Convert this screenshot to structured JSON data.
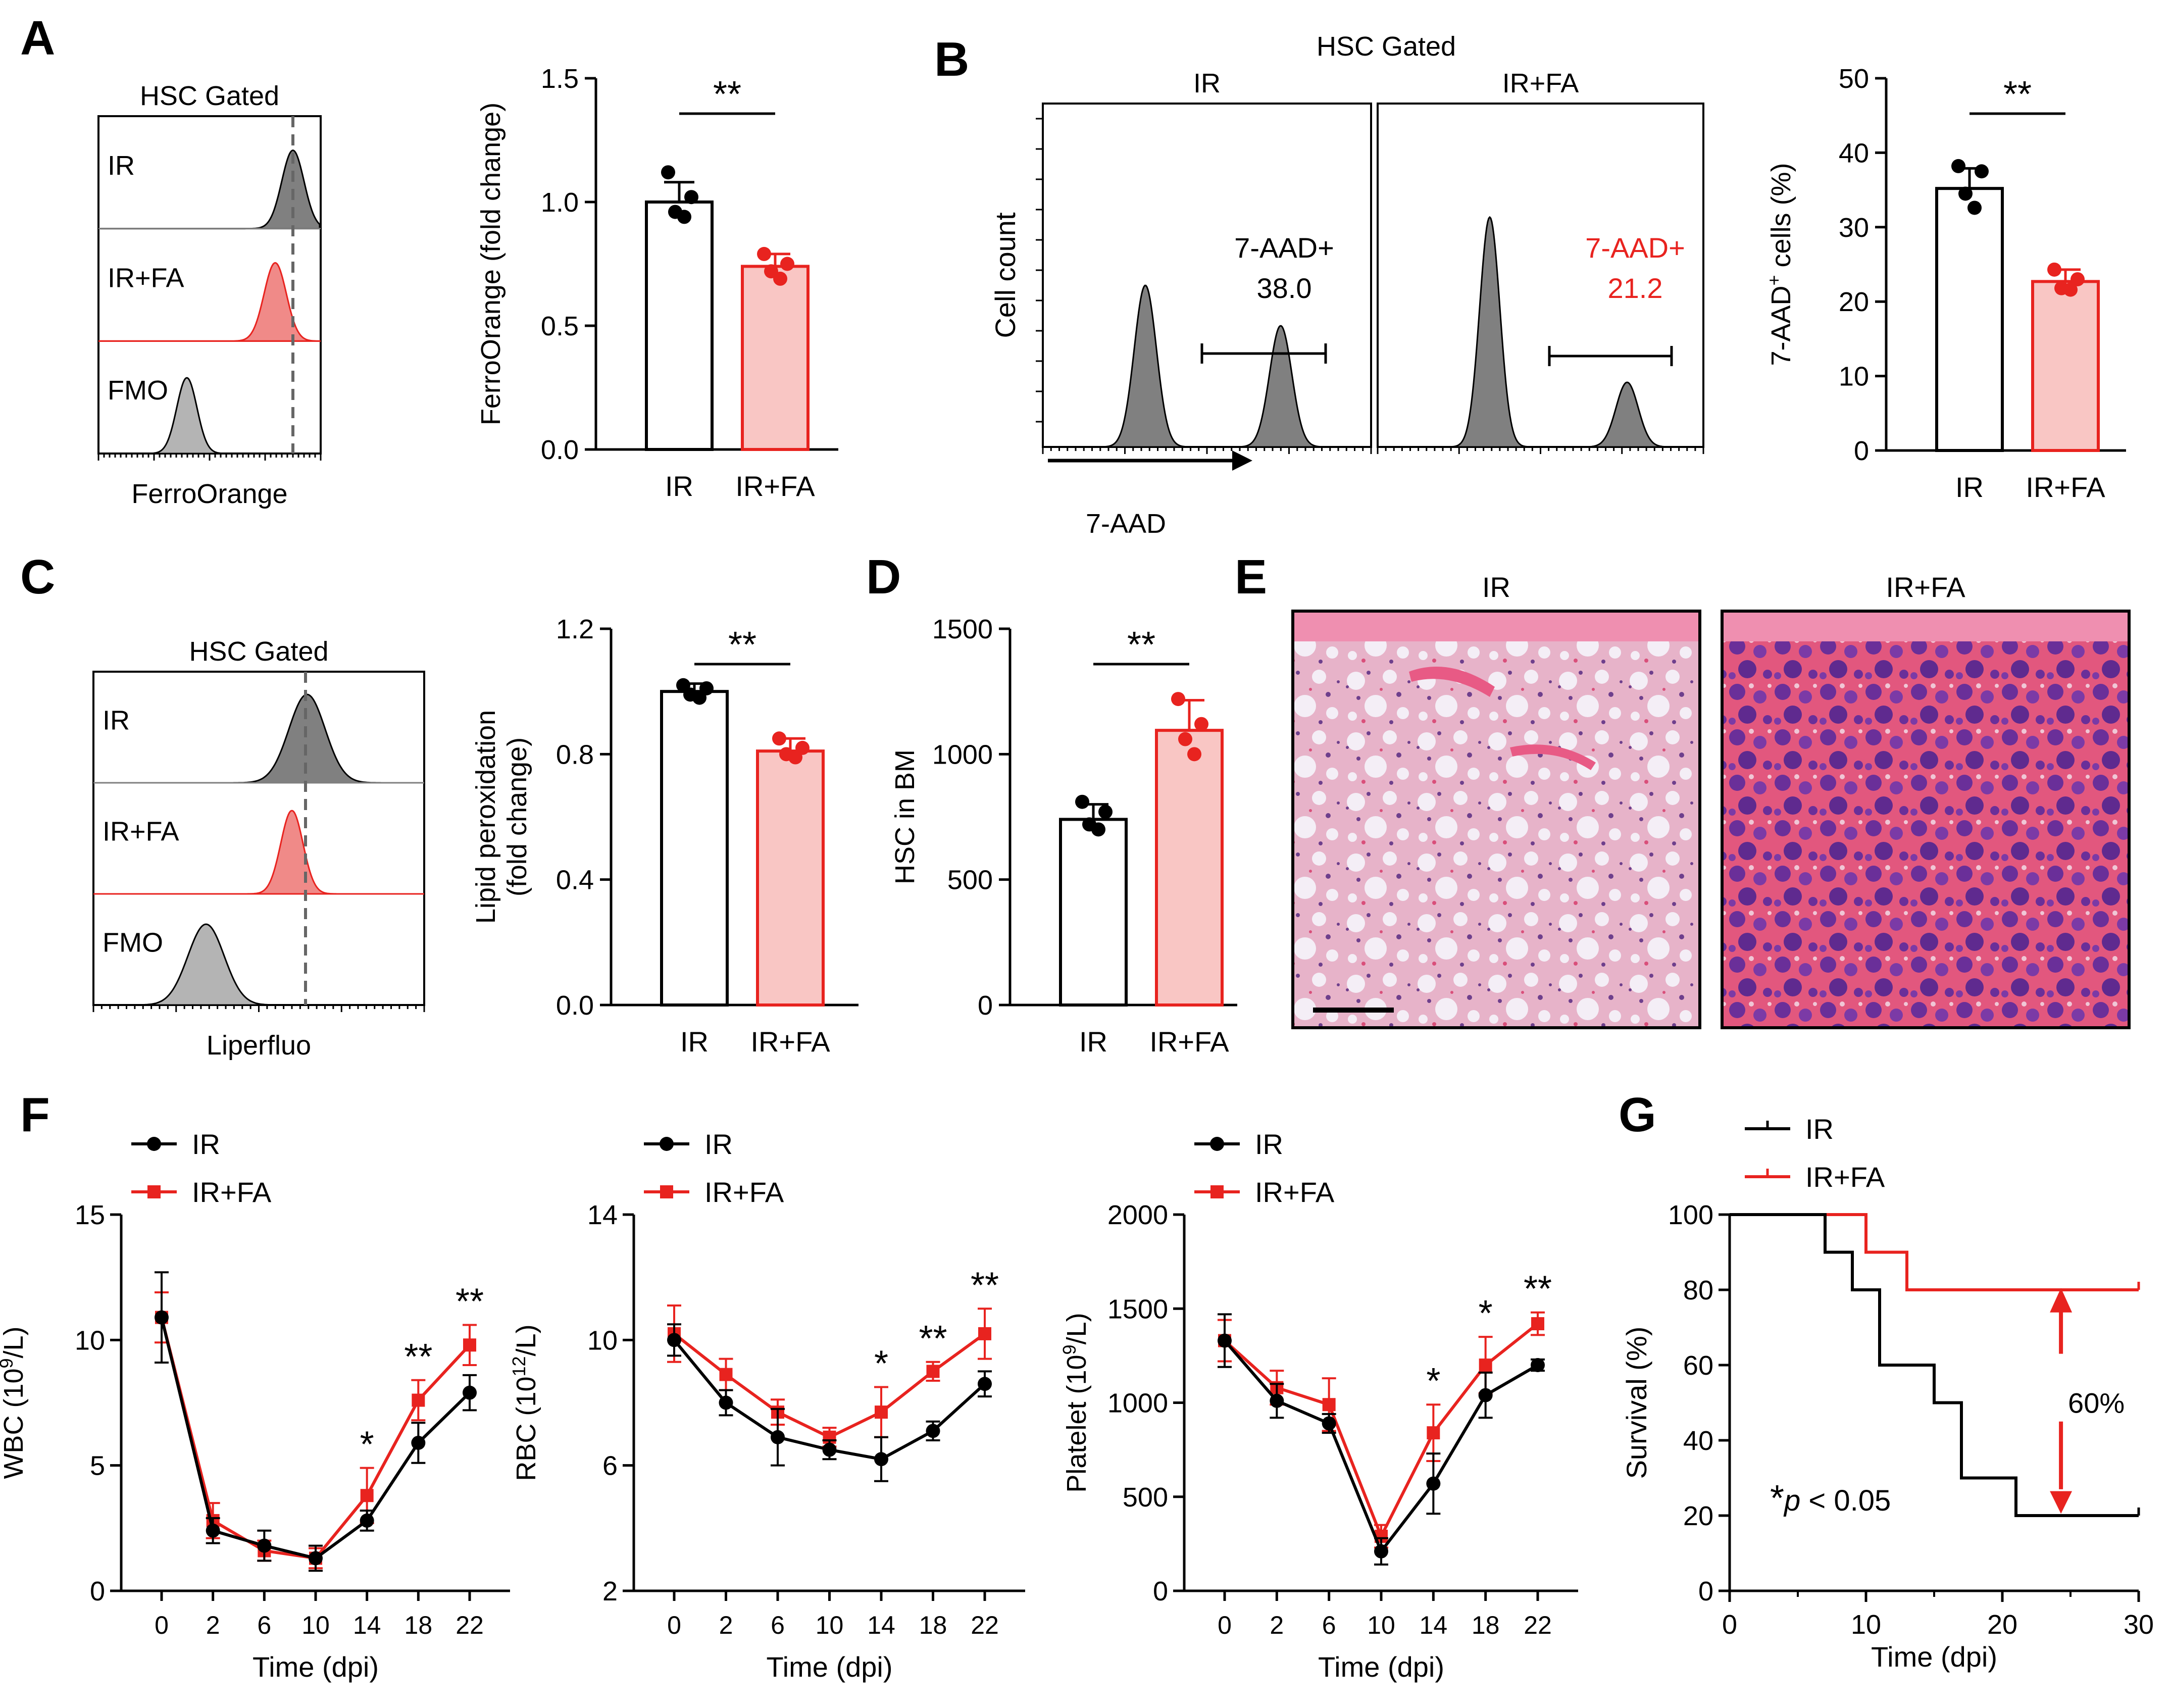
{
  "colors": {
    "ir": "#000000",
    "fa": "#e8231f",
    "fa_fill": "#f9c6c4",
    "gray_fill": "#7f7f7f",
    "fmo_fill": "#b4b4b4"
  },
  "panels": {
    "A": "A",
    "B": "B",
    "C": "C",
    "D": "D",
    "E": "E",
    "F": "F",
    "G": "G"
  },
  "flowA": {
    "title": "HSC Gated",
    "xlabel": "FerroOrange",
    "rows": [
      "IR",
      "IR+FA",
      "FMO"
    ]
  },
  "flowB": {
    "title": "HSC Gated",
    "ylabel": "Cell count",
    "xlabel": "7-AAD",
    "cols": [
      "IR",
      "IR+FA"
    ],
    "gate_ir": "7-AAD+",
    "value_ir": "38.0",
    "gate_fa": "7-AAD+",
    "value_fa": "21.2"
  },
  "flowC": {
    "title": "HSC Gated",
    "xlabel": "Liperfluo",
    "rows": [
      "IR",
      "IR+FA",
      "FMO"
    ]
  },
  "histE": {
    "titles": [
      "IR",
      "IR+FA"
    ]
  },
  "survivalG": {
    "pvalue_star": "*",
    "pvalue_p": "p",
    "pvalue_rest": " < 0.05",
    "diff_label": "60%"
  },
  "chart_data": [
    {
      "id": "A",
      "type": "bar",
      "title": "",
      "ylabel": "FerroOrange (fold change)",
      "xlabel": "",
      "categories": [
        "IR",
        "IR+FA"
      ],
      "values": [
        1.0,
        0.74
      ],
      "errors": [
        0.08,
        0.05
      ],
      "points": [
        [
          1.12,
          1.02,
          0.96,
          0.94
        ],
        [
          0.79,
          0.75,
          0.72,
          0.69
        ]
      ],
      "ylim": [
        0,
        1.5
      ],
      "yticks": [
        "0.0",
        "0.5",
        "1.0",
        "1.5"
      ],
      "significance": "**"
    },
    {
      "id": "B",
      "type": "bar",
      "title": "",
      "ylabel": "7-AAD",
      "ylabel_sup": "+",
      "ylabel_end": " cells (%)",
      "xlabel": "",
      "categories": [
        "IR",
        "IR+FA"
      ],
      "values": [
        35.2,
        22.7
      ],
      "errors": [
        2.7,
        1.6
      ],
      "points": [
        [
          38.2,
          37.5,
          34.5,
          32.6
        ],
        [
          24.3,
          23.0,
          21.8,
          21.6
        ]
      ],
      "ylim": [
        0,
        50
      ],
      "yticks": [
        "0",
        "10",
        "20",
        "30",
        "40",
        "50"
      ],
      "significance": "**"
    },
    {
      "id": "C",
      "type": "bar",
      "title": "",
      "ylabel": "Lipid peroxidation",
      "ylabel2": "(fold change)",
      "xlabel": "",
      "categories": [
        "IR",
        "IR+FA"
      ],
      "values": [
        1.0,
        0.81
      ],
      "errors": [
        0.025,
        0.04
      ],
      "points": [
        [
          1.02,
          1.01,
          0.99,
          0.98
        ],
        [
          0.85,
          0.82,
          0.8,
          0.79
        ]
      ],
      "ylim": [
        0,
        1.2
      ],
      "yticks": [
        "0.0",
        "0.4",
        "0.8",
        "1.2"
      ],
      "significance": "**"
    },
    {
      "id": "D",
      "type": "bar",
      "title": "",
      "ylabel": "HSC in BM",
      "xlabel": "",
      "categories": [
        "IR",
        "IR+FA"
      ],
      "values": [
        740,
        1095
      ],
      "errors": [
        60,
        120
      ],
      "points": [
        [
          810,
          770,
          720,
          700
        ],
        [
          1220,
          1120,
          1060,
          1000
        ]
      ],
      "ylim": [
        0,
        1500
      ],
      "yticks": [
        "0",
        "500",
        "1000",
        "1500"
      ],
      "significance": "**"
    },
    {
      "id": "F1",
      "type": "line",
      "title": "",
      "xlabel": "Time (dpi)",
      "ylabel": "WBC (10",
      "ylabel_sup": "9",
      "ylabel_end": "/L)",
      "x": [
        0,
        2,
        6,
        10,
        14,
        18,
        22
      ],
      "xticks": [
        "0",
        "2",
        "6",
        "10",
        "14",
        "18",
        "22"
      ],
      "ylim": [
        0,
        15
      ],
      "yticks": [
        "0",
        "5",
        "10",
        "15"
      ],
      "series": [
        {
          "name": "IR",
          "values": [
            10.9,
            2.4,
            1.8,
            1.3,
            2.8,
            5.9,
            7.9
          ],
          "errors": [
            1.8,
            0.5,
            0.6,
            0.5,
            0.4,
            0.8,
            0.7
          ]
        },
        {
          "name": "IR+FA",
          "values": [
            10.9,
            2.8,
            1.6,
            1.3,
            3.8,
            7.6,
            9.8
          ],
          "errors": [
            1.0,
            0.7,
            0.4,
            0.4,
            1.1,
            0.8,
            0.8
          ]
        }
      ],
      "significance": [
        "",
        "",
        "",
        "",
        "*",
        "**",
        "**"
      ]
    },
    {
      "id": "F2",
      "type": "line",
      "title": "",
      "xlabel": "Time (dpi)",
      "ylabel": "RBC (10",
      "ylabel_sup": "12",
      "ylabel_end": "/L)",
      "x": [
        0,
        2,
        6,
        10,
        14,
        18,
        22
      ],
      "xticks": [
        "0",
        "2",
        "6",
        "10",
        "14",
        "18",
        "22"
      ],
      "ylim": [
        2,
        14
      ],
      "yticks": [
        "2",
        "6",
        "10",
        "14"
      ],
      "series": [
        {
          "name": "IR",
          "values": [
            10.0,
            8.0,
            6.9,
            6.5,
            6.2,
            7.1,
            8.6
          ],
          "errors": [
            0.5,
            0.4,
            0.9,
            0.3,
            0.7,
            0.3,
            0.4
          ]
        },
        {
          "name": "IR+FA",
          "values": [
            10.2,
            8.9,
            7.7,
            6.9,
            7.7,
            9.0,
            10.2
          ],
          "errors": [
            0.9,
            0.5,
            0.4,
            0.3,
            0.8,
            0.3,
            0.8
          ]
        }
      ],
      "significance": [
        "",
        "",
        "",
        "",
        "*",
        "**",
        "**"
      ]
    },
    {
      "id": "F3",
      "type": "line",
      "title": "",
      "xlabel": "Time (dpi)",
      "ylabel": "Platelet (10",
      "ylabel_sup": "9",
      "ylabel_end": "/L)",
      "x": [
        0,
        2,
        6,
        10,
        14,
        18,
        22
      ],
      "xticks": [
        "0",
        "2",
        "6",
        "10",
        "14",
        "18",
        "22"
      ],
      "ylim": [
        0,
        2000
      ],
      "yticks": [
        "0",
        "500",
        "1000",
        "1500",
        "2000"
      ],
      "series": [
        {
          "name": "IR",
          "values": [
            1330,
            1010,
            890,
            210,
            570,
            1040,
            1200
          ],
          "errors": [
            140,
            90,
            50,
            70,
            160,
            120,
            30
          ]
        },
        {
          "name": "IR+FA",
          "values": [
            1330,
            1080,
            990,
            290,
            840,
            1200,
            1420
          ],
          "errors": [
            110,
            90,
            140,
            60,
            150,
            150,
            60
          ]
        }
      ],
      "significance": [
        "",
        "",
        "",
        "",
        "*",
        "*",
        "**"
      ]
    },
    {
      "id": "G",
      "type": "line",
      "title": "",
      "xlabel": "Time (dpi)",
      "ylabel": "Survival (%)",
      "xlim": [
        0,
        30
      ],
      "xticks": [
        "0",
        "10",
        "20",
        "30"
      ],
      "ylim": [
        0,
        100
      ],
      "yticks": [
        "0",
        "20",
        "40",
        "60",
        "80",
        "100"
      ],
      "series": [
        {
          "name": "IR",
          "steps": [
            [
              0,
              100
            ],
            [
              7,
              100
            ],
            [
              7,
              90
            ],
            [
              9,
              90
            ],
            [
              9,
              80
            ],
            [
              11,
              80
            ],
            [
              11,
              60
            ],
            [
              15,
              60
            ],
            [
              15,
              50
            ],
            [
              17,
              50
            ],
            [
              17,
              30
            ],
            [
              21,
              30
            ],
            [
              21,
              20
            ],
            [
              30,
              20
            ]
          ]
        },
        {
          "name": "IR+FA",
          "steps": [
            [
              0,
              100
            ],
            [
              10,
              100
            ],
            [
              10,
              90
            ],
            [
              13,
              90
            ],
            [
              13,
              80
            ],
            [
              30,
              80
            ]
          ]
        }
      ]
    }
  ]
}
